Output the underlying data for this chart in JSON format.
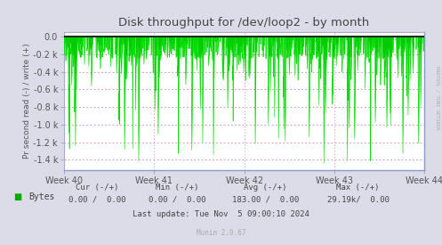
{
  "title": "Disk throughput for /dev/loop2 - by month",
  "ylabel": "Pr second read (-) / write (+)",
  "background_color": "#dcdce8",
  "plot_bg_color": "#ffffff",
  "grid_color": "#e080a0",
  "ytick_vals": [
    0,
    -200,
    -400,
    -600,
    -800,
    -1000,
    -1200,
    -1400
  ],
  "ytick_labels": [
    "0.0",
    "-0.2 k",
    "-0.4 k",
    "-0.6 k",
    "-0.8 k",
    "-1.0 k",
    "-1.2 k",
    "-1.4 k"
  ],
  "ylim_min": -1520,
  "ylim_max": 55,
  "xtick_labels": [
    "Week 40",
    "Week 41",
    "Week 42",
    "Week 43",
    "Week 44"
  ],
  "line_color": "#00dd00",
  "fill_color": "#00cc00",
  "top_line_color": "#000000",
  "border_color": "#aaaacc",
  "rrdtool_text_color": "#aaaaaa",
  "legend_label": "Bytes",
  "legend_color": "#00aa00",
  "footer_cur_label": "Cur (-/+)",
  "footer_min_label": "Min (-/+)",
  "footer_avg_label": "Avg (-/+)",
  "footer_max_label": "Max (-/+)",
  "footer_cur_val": "0.00 /  0.00",
  "footer_min_val": "0.00 /  0.00",
  "footer_avg_val": "183.00 /  0.00",
  "footer_max_val": "29.19k/  0.00",
  "footer_last_update": "Last update: Tue Nov  5 09:00:10 2024",
  "munin_version": "Munin 2.0.67",
  "num_spikes": 200,
  "spike_seed": 12345
}
